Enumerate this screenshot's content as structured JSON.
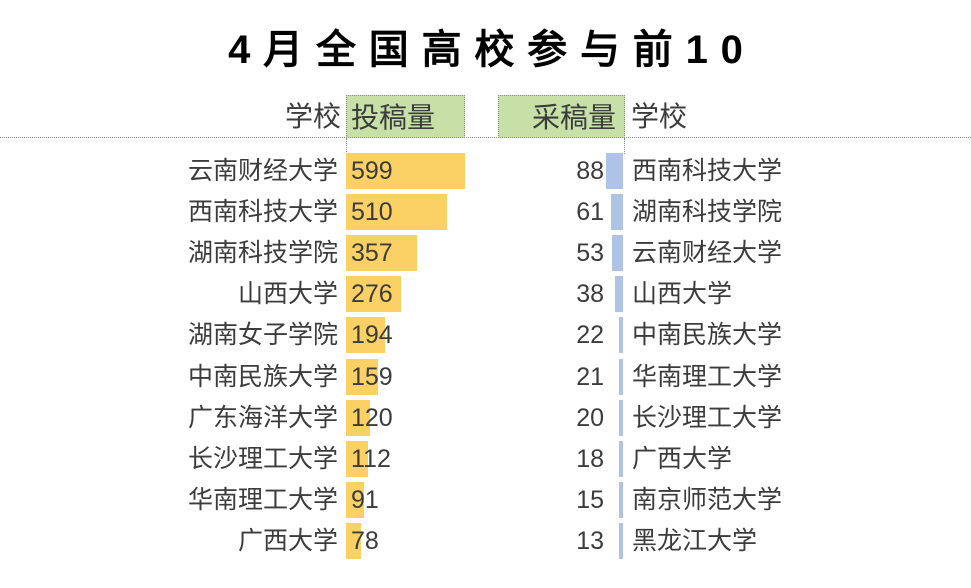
{
  "title": "4月全国高校参与前10",
  "header": {
    "left_school": "学校",
    "left_value": "投稿量",
    "right_value": "采稿量",
    "right_school": "学校"
  },
  "left_table": {
    "rows": [
      {
        "school": "云南财经大学",
        "value": 599
      },
      {
        "school": "西南科技大学",
        "value": 510
      },
      {
        "school": "湖南科技学院",
        "value": 357
      },
      {
        "school": "山西大学",
        "value": 276
      },
      {
        "school": "湖南女子学院",
        "value": 194
      },
      {
        "school": "中南民族大学",
        "value": 159
      },
      {
        "school": "广东海洋大学",
        "value": 120
      },
      {
        "school": "长沙理工大学",
        "value": 112
      },
      {
        "school": "华南理工大学",
        "value": 91
      },
      {
        "school": "广西大学",
        "value": 78
      }
    ]
  },
  "right_table": {
    "rows": [
      {
        "value": 88,
        "school": "西南科技大学"
      },
      {
        "value": 61,
        "school": "湖南科技学院"
      },
      {
        "value": 53,
        "school": "云南财经大学"
      },
      {
        "value": 38,
        "school": "山西大学"
      },
      {
        "value": 22,
        "school": "中南民族大学"
      },
      {
        "value": 21,
        "school": "华南理工大学"
      },
      {
        "value": 20,
        "school": "长沙理工大学"
      },
      {
        "value": 18,
        "school": "广西大学"
      },
      {
        "value": 15,
        "school": "南京师范大学"
      },
      {
        "value": 13,
        "school": "黑龙江大学"
      }
    ]
  },
  "colors": {
    "submission_bar": "#FBD166",
    "acceptance_bar": "#AEC3E6",
    "header_highlight": "#C6E0A8",
    "text": "#3C3C3C",
    "title_text": "#000000",
    "grid_dotted": "#8C8C8C"
  },
  "chart_data": [
    {
      "type": "bar",
      "title": "投稿量",
      "orientation": "horizontal",
      "legend_position": "none",
      "grid": false,
      "value_axis_max_for_scale": 599,
      "categories": [
        "云南财经大学",
        "西南科技大学",
        "湖南科技学院",
        "山西大学",
        "湖南女子学院",
        "中南民族大学",
        "广东海洋大学",
        "长沙理工大学",
        "华南理工大学",
        "广西大学"
      ],
      "values": [
        599,
        510,
        357,
        276,
        194,
        159,
        120,
        112,
        91,
        78
      ],
      "bar_color": "#FBD166"
    },
    {
      "type": "bar",
      "title": "采稿量",
      "orientation": "horizontal",
      "legend_position": "none",
      "grid": false,
      "value_axis_max_for_scale": 599,
      "categories": [
        "西南科技大学",
        "湖南科技学院",
        "云南财经大学",
        "山西大学",
        "中南民族大学",
        "华南理工大学",
        "长沙理工大学",
        "广西大学",
        "南京师范大学",
        "黑龙江大学"
      ],
      "values": [
        88,
        61,
        53,
        38,
        22,
        21,
        20,
        18,
        15,
        13
      ],
      "bar_color": "#AEC3E6"
    }
  ]
}
